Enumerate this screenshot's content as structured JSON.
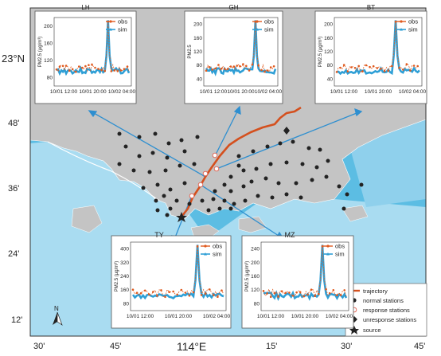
{
  "map": {
    "lat_labels": [
      "23°N",
      "48'",
      "36'",
      "24'",
      "12'"
    ],
    "lon_labels": [
      "30'",
      "45'",
      "114°E",
      "15'",
      "30'",
      "45'"
    ],
    "north_label": "N"
  },
  "legend": {
    "trajectory": "trajectory",
    "normal": "normal stations",
    "response": "response stations",
    "unresponse": "unresponse stations",
    "source": "source"
  },
  "colors": {
    "sea_deep": "#4fb6e0",
    "sea_light": "#cfeaf6",
    "land": "#c4c4c4",
    "trajectory": "#d4501e",
    "obs": "#e05a1e",
    "sim": "#2e9fd6",
    "arrow": "#2e8fd0"
  },
  "panels": [
    {
      "id": "LH",
      "title": "LH",
      "ylabel": "PM2.5 (µg/m³)",
      "yticks": [
        "80",
        "120",
        "160",
        "200"
      ],
      "xticks": [
        "10/01 12:00",
        "10/01 20:00",
        "10/02 04:00"
      ],
      "obs_label": "obs",
      "sim_label": "sim"
    },
    {
      "id": "GH",
      "title": "GH",
      "ylabel": "PM2.5",
      "yticks": [
        "40",
        "80",
        "120",
        "160",
        "200"
      ],
      "xticks": [
        "10/01 12:00",
        "10/01 20:00",
        "10/02 04:00"
      ],
      "obs_label": "obs",
      "sim_label": "sim"
    },
    {
      "id": "BT",
      "title": "BT",
      "ylabel": "PM2.5 (µg/m³)",
      "yticks": [
        "40",
        "80",
        "120",
        "160",
        "200"
      ],
      "xticks": [
        "10/01 12:00",
        "10/01 20:00",
        "10/02 04:00"
      ],
      "obs_label": "obs",
      "sim_label": "sim"
    },
    {
      "id": "TY",
      "title": "TY",
      "ylabel": "PM2.5 (µg/m³)",
      "yticks": [
        "80",
        "160",
        "240",
        "320",
        "400"
      ],
      "xticks": [
        "10/01 12:00",
        "10/01 20:00",
        "10/02 04:00"
      ],
      "obs_label": "obs",
      "sim_label": "sim"
    },
    {
      "id": "MZ",
      "title": "MZ",
      "ylabel": "PM2.5 (µg/m³)",
      "yticks": [
        "80",
        "120",
        "160",
        "200",
        "240"
      ],
      "xticks": [
        "10/01 12:00",
        "10/01 20:00",
        "10/02 04:00"
      ],
      "obs_label": "obs",
      "sim_label": "sim"
    }
  ]
}
